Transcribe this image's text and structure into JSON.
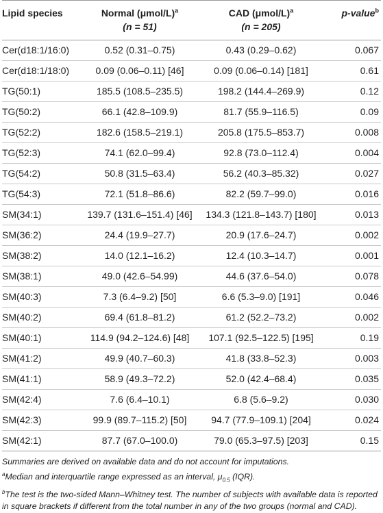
{
  "table": {
    "headers": {
      "species": "Lipid species",
      "normal_label": "Normal (μmol/L)",
      "normal_sup": "a",
      "normal_n": "(n = 51)",
      "cad_label": "CAD (μmol/L)",
      "cad_sup": "a",
      "cad_n": "(n = 205)",
      "pvalue_label": "p-value",
      "pvalue_sup": "b"
    },
    "rows": [
      {
        "species": "Cer(d18:1/16:0)",
        "normal": "0.52 (0.31–0.75)",
        "cad": "0.43 (0.29–0.62)",
        "p": "0.067"
      },
      {
        "species": "Cer(d18:1/18:0)",
        "normal": "0.09 (0.06–0.11) [46]",
        "cad": "0.09 (0.06–0.14) [181]",
        "p": "0.61"
      },
      {
        "species": "TG(50:1)",
        "normal": "185.5 (108.5–235.5)",
        "cad": "198.2 (144.4–269.9)",
        "p": "0.12"
      },
      {
        "species": "TG(50:2)",
        "normal": "66.1 (42.8–109.9)",
        "cad": "81.7 (55.9–116.5)",
        "p": "0.09"
      },
      {
        "species": "TG(52:2)",
        "normal": "182.6 (158.5–219.1)",
        "cad": "205.8 (175.5–853.7)",
        "p": "0.008"
      },
      {
        "species": "TG(52:3)",
        "normal": "74.1 (62.0–99.4)",
        "cad": "92.8 (73.0–112.4)",
        "p": "0.004"
      },
      {
        "species": "TG(54:2)",
        "normal": "50.8 (31.5–63.4)",
        "cad": "56.2 (40.3–85.32)",
        "p": "0.027"
      },
      {
        "species": "TG(54:3)",
        "normal": "72.1 (51.8–86.6)",
        "cad": "82.2 (59.7–99.0)",
        "p": "0.016"
      },
      {
        "species": "SM(34:1)",
        "normal": "139.7 (131.6–151.4) [46]",
        "cad": "134.3 (121.8–143.7) [180]",
        "p": "0.013"
      },
      {
        "species": "SM(36:2)",
        "normal": "24.4 (19.9–27.7)",
        "cad": "20.9 (17.6–24.7)",
        "p": "0.002"
      },
      {
        "species": "SM(38:2)",
        "normal": "14.0 (12.1–16.2)",
        "cad": "12.4 (10.3–14.7)",
        "p": "0.001"
      },
      {
        "species": "SM(38:1)",
        "normal": "49.0 (42.6–54.99)",
        "cad": "44.6 (37.6–54.0)",
        "p": "0.078"
      },
      {
        "species": "SM(40:3)",
        "normal": "7.3 (6.4–9.2) [50]",
        "cad": "6.6 (5.3–9.0) [191]",
        "p": "0.046"
      },
      {
        "species": "SM(40:2)",
        "normal": "69.4 (61.8–81.2)",
        "cad": "61.2 (52.2–73.2)",
        "p": "0.002"
      },
      {
        "species": "SM(40:1)",
        "normal": "114.9 (94.2–124.6) [48]",
        "cad": "107.1 (92.5–122.5) [195]",
        "p": "0.19"
      },
      {
        "species": "SM(41:2)",
        "normal": "49.9 (40.7–60.3)",
        "cad": "41.8 (33.8–52.3)",
        "p": "0.003"
      },
      {
        "species": "SM(41:1)",
        "normal": "58.9 (49.3–72.2)",
        "cad": "52.0 (42.4–68.4)",
        "p": "0.035"
      },
      {
        "species": "SM(42:4)",
        "normal": "7.6 (6.4–10.1)",
        "cad": "6.8 (5.6–9.2)",
        "p": "0.030"
      },
      {
        "species": "SM(42:3)",
        "normal": "99.9 (89.7–115.2) [50]",
        "cad": "94.7 (77.9–109.1) [204]",
        "p": "0.024"
      },
      {
        "species": "SM(42:1)",
        "normal": "87.7 (67.0–100.0)",
        "cad": "79.0 (65.3–97.5) [203]",
        "p": "0.15"
      }
    ]
  },
  "footnotes": {
    "summary": "Summaries are derived on available data and do not account for imputations.",
    "a_mark": "a",
    "a_text": "Median and interquartile range expressed as an interval, ",
    "a_mu": "μ",
    "a_sub": "0.5",
    "a_tail": " (IQR).",
    "b_mark": "b",
    "b_text": "The test is the two-sided Mann–Whitney test. The number of subjects with available data is reported in square brackets if different from the total number in any of the two groups (normal and CAD)."
  }
}
